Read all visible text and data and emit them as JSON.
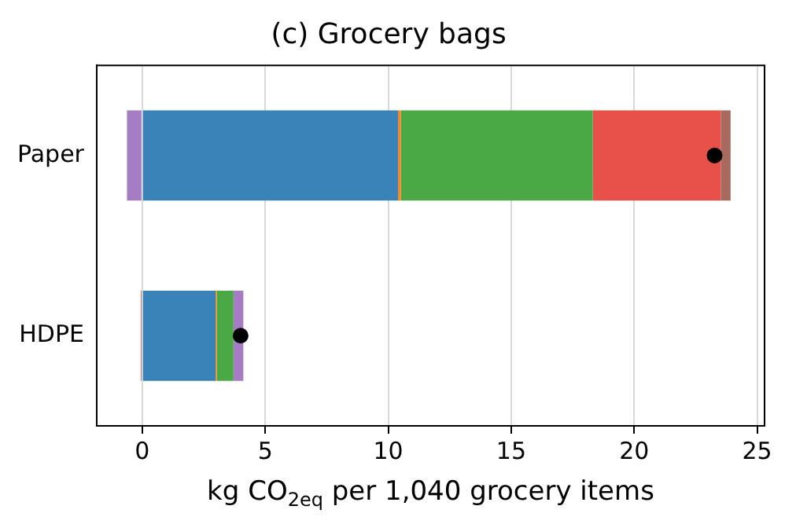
{
  "chart_data": {
    "type": "bar",
    "orientation": "horizontal",
    "stacked": true,
    "title": "(c) Grocery bags",
    "xlabel": "kg CO$_{2eq}$ per 1,040 grocery items",
    "categories": [
      "Paper",
      "HDPE"
    ],
    "xlim": [
      -1.85,
      25.3
    ],
    "xticks": [
      0,
      5,
      10,
      15,
      20,
      25
    ],
    "grid": "x",
    "legend": false,
    "series": [
      {
        "color": "#3a83b8",
        "values": [
          10.4,
          2.98
        ]
      },
      {
        "color": "#f5892a",
        "values": [
          0.12,
          0.05
        ]
      },
      {
        "color": "#4aa845",
        "values": [
          7.8,
          0.68
        ]
      },
      {
        "color": "#e8504a",
        "values": [
          5.2,
          0
        ]
      },
      {
        "color": "#a8695e",
        "values": [
          0.4,
          -0.06
        ]
      },
      {
        "color": "#a67dc4",
        "values": [
          -0.62,
          0.4
        ]
      },
      {
        "type": "scatter",
        "color": "#000000",
        "x": [
          "Paper",
          "HDPE"
        ],
        "values": [
          23.27,
          4.0
        ],
        "marker": "circle"
      }
    ]
  }
}
